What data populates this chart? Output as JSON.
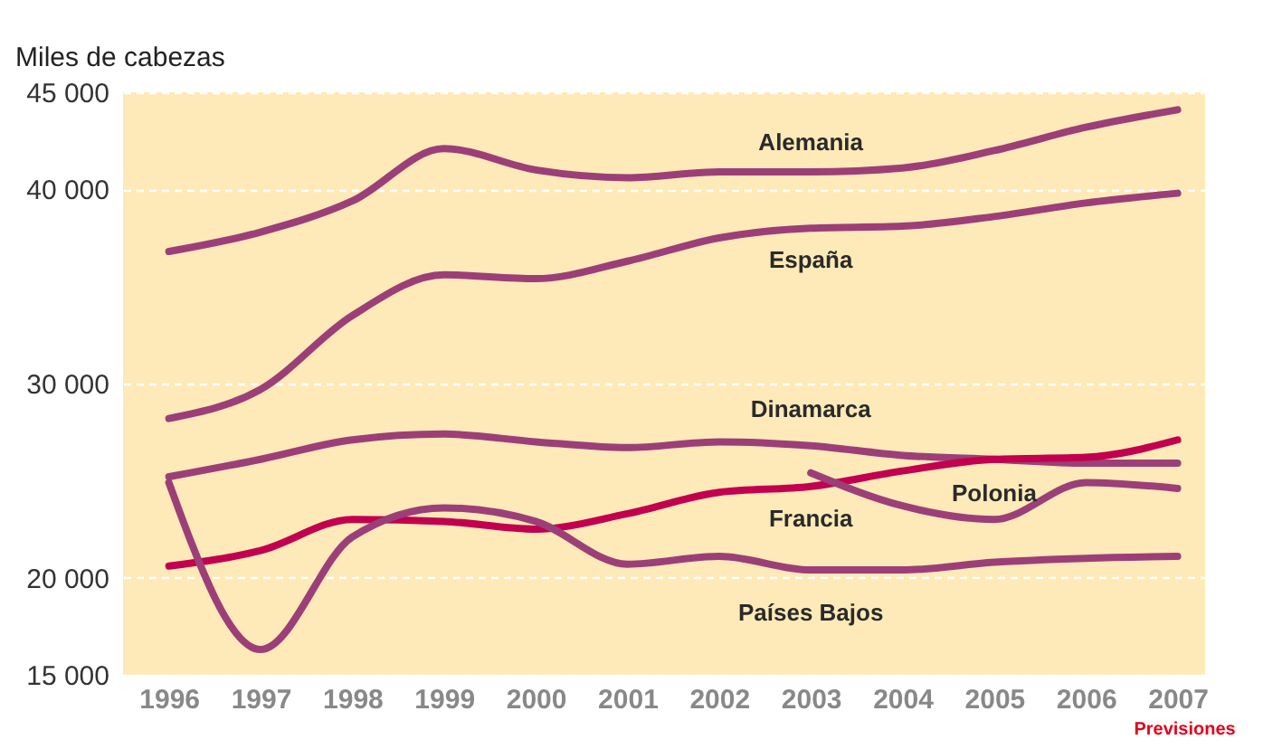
{
  "chart_data": {
    "type": "line",
    "ylabel": "Miles de cabezas",
    "annotations": [
      "Previsiones"
    ],
    "x": [
      1996,
      1997,
      1998,
      1999,
      2000,
      2001,
      2002,
      2003,
      2004,
      2005,
      2006,
      2007
    ],
    "xlim": [
      1995.5,
      2007.3
    ],
    "xticks": [
      1996,
      1997,
      1998,
      1999,
      2000,
      2001,
      2002,
      2003,
      2004,
      2005,
      2006,
      2007
    ],
    "ylim": [
      15000,
      45000
    ],
    "yticks": [
      {
        "value": 15000,
        "label": "15 000"
      },
      {
        "value": 20000,
        "label": "20 000"
      },
      {
        "value": 30000,
        "label": "30 000"
      },
      {
        "value": 40000,
        "label": "40 000"
      },
      {
        "value": 45000,
        "label": "45 000"
      }
    ],
    "grid": "y",
    "legend": false,
    "line_style": "solid",
    "series": [
      {
        "name": "Alemania",
        "color": "#9c3f78",
        "values": [
          36800,
          37800,
          39400,
          42100,
          41000,
          40600,
          40900,
          40900,
          41100,
          42000,
          43200,
          44100
        ]
      },
      {
        "name": "España",
        "color": "#9c3f78",
        "values": [
          28200,
          29700,
          33500,
          35600,
          35400,
          36300,
          37500,
          38000,
          38100,
          38600,
          39300,
          39800
        ]
      },
      {
        "name": "Dinamarca",
        "color": "#9c3f78",
        "values": [
          25200,
          26100,
          27100,
          27400,
          27000,
          26700,
          27000,
          26800,
          26300,
          26100,
          25900,
          25900
        ]
      },
      {
        "name": "Francia",
        "color": "#c2004f",
        "values": [
          20600,
          21400,
          23000,
          22900,
          22500,
          23300,
          24400,
          24700,
          25500,
          26100,
          26200,
          27100
        ]
      },
      {
        "name": "Países Bajos",
        "color": "#9c3f78",
        "values": [
          24900,
          16300,
          22100,
          23600,
          22900,
          20700,
          21100,
          20400,
          20400,
          20800,
          21000,
          21100
        ]
      },
      {
        "name": "Polonia",
        "color": "#9c3f78",
        "x": [
          2003,
          2004,
          2005,
          2006,
          2007
        ],
        "values": [
          25400,
          23700,
          23000,
          24900,
          24600
        ]
      }
    ]
  }
}
